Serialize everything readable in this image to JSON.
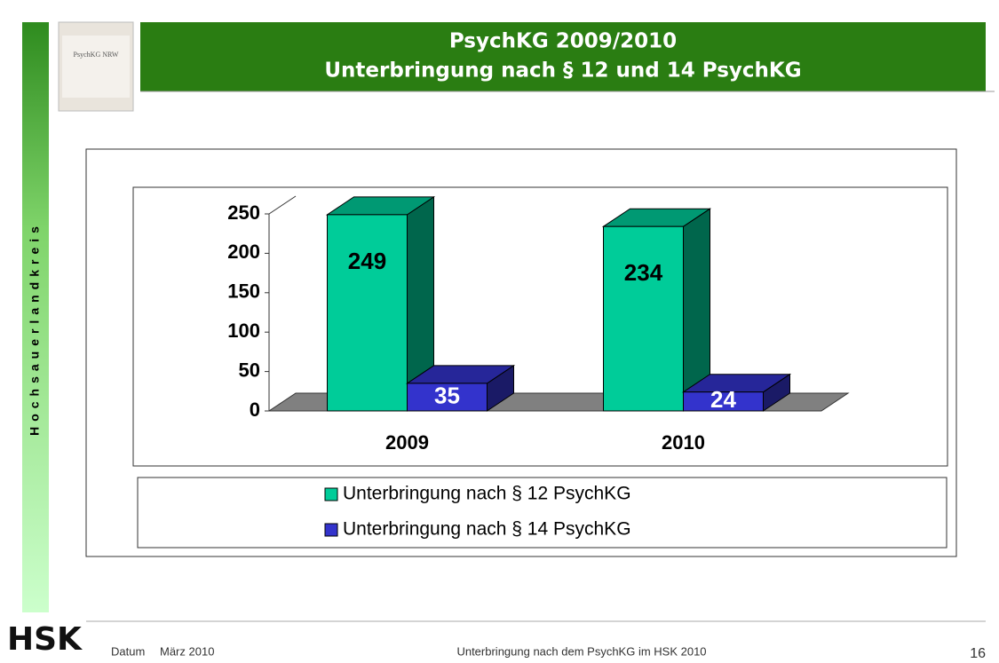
{
  "slide": {
    "title_line1": "PsychKG 2009/2010",
    "title_line2": "Unterbringung nach § 12 und 14 PsychKG",
    "sidebar": "Hochsauerlandkreis",
    "book_title": "PsychKG NRW",
    "logo": "HSK",
    "footer_label": "Datum",
    "footer_date": "März 2010",
    "footer_text": "Unterbringung nach dem PsychKG im HSK 2010",
    "page_number": "16"
  },
  "chart_data": {
    "type": "bar",
    "categories": [
      "2009",
      "2010"
    ],
    "series": [
      {
        "name": "Unterbringung nach § 12 PsychKG",
        "color": "#00cc99",
        "values": [
          249,
          234
        ]
      },
      {
        "name": "Unterbringung nach § 14 PsychKG",
        "color": "#3333cc",
        "values": [
          35,
          24
        ]
      }
    ],
    "ylim": [
      0,
      250
    ],
    "yticks": [
      0,
      50,
      100,
      150,
      200,
      250
    ]
  }
}
